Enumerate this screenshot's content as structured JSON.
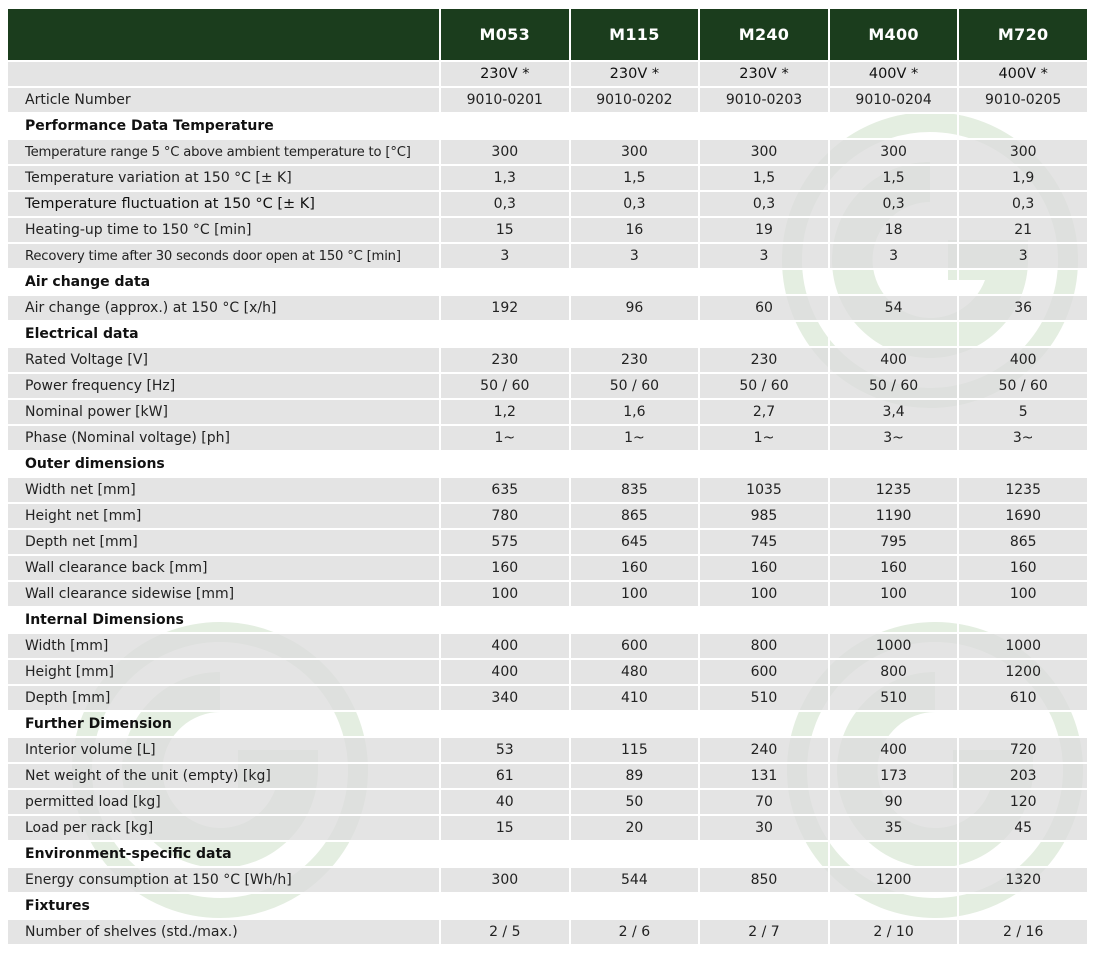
{
  "header": {
    "models": [
      "M053",
      "M115",
      "M240",
      "M400",
      "M720"
    ]
  },
  "voltage_row": [
    "230V *",
    "230V *",
    "230V *",
    "400V *",
    "400V *"
  ],
  "sections": [
    {
      "title": "",
      "rows": [
        {
          "label": "Article Number",
          "values": [
            "9010-0201",
            "9010-0202",
            "9010-0203",
            "9010-0204",
            "9010-0205"
          ]
        }
      ]
    },
    {
      "title": "Performance Data Temperature",
      "rows": [
        {
          "label": "Temperature range 5 °C above ambient temperature to [°C]",
          "values": [
            "300",
            "300",
            "300",
            "300",
            "300"
          ]
        },
        {
          "label": "Temperature variation at 150 °C [± K]",
          "values": [
            "1,3",
            "1,5",
            "1,5",
            "1,5",
            "1,9"
          ]
        },
        {
          "label": "Temperature fluctuation at 150 °C [± K]",
          "values": [
            "0,3",
            "0,3",
            "0,3",
            "0,3",
            "0,3"
          ]
        },
        {
          "label": "Heating-up time to 150 °C [min]",
          "values": [
            "15",
            "16",
            "19",
            "18",
            "21"
          ]
        },
        {
          "label": "Recovery time after 30 seconds door open at 150 °C [min]",
          "values": [
            "3",
            "3",
            "3",
            "3",
            "3"
          ]
        }
      ]
    },
    {
      "title": "Air change data",
      "rows": [
        {
          "label": "Air change (approx.) at 150 °C [x/h]",
          "values": [
            "192",
            "96",
            "60",
            "54",
            "36"
          ]
        }
      ]
    },
    {
      "title": "Electrical data",
      "rows": [
        {
          "label": "Rated Voltage [V]",
          "values": [
            "230",
            "230",
            "230",
            "400",
            "400"
          ]
        },
        {
          "label": "Power frequency [Hz]",
          "values": [
            "50 / 60",
            "50 / 60",
            "50 / 60",
            "50 / 60",
            "50 / 60"
          ]
        },
        {
          "label": "Nominal power [kW]",
          "values": [
            "1,2",
            "1,6",
            "2,7",
            "3,4",
            "5"
          ]
        },
        {
          "label": "Phase (Nominal voltage) [ph]",
          "values": [
            "1~",
            "1~",
            "1~",
            "3~",
            "3~"
          ]
        }
      ]
    },
    {
      "title": "Outer dimensions",
      "rows": [
        {
          "label": "Width net [mm]",
          "values": [
            "635",
            "835",
            "1035",
            "1235",
            "1235"
          ]
        },
        {
          "label": "Height net [mm]",
          "values": [
            "780",
            "865",
            "985",
            "1190",
            "1690"
          ]
        },
        {
          "label": "Depth net [mm]",
          "values": [
            "575",
            "645",
            "745",
            "795",
            "865"
          ]
        },
        {
          "label": "Wall clearance back [mm]",
          "values": [
            "160",
            "160",
            "160",
            "160",
            "160"
          ]
        },
        {
          "label": "Wall clearance sidewise [mm]",
          "values": [
            "100",
            "100",
            "100",
            "100",
            "100"
          ]
        }
      ]
    },
    {
      "title": "Internal Dimensions",
      "rows": [
        {
          "label": "Width [mm]",
          "values": [
            "400",
            "600",
            "800",
            "1000",
            "1000"
          ]
        },
        {
          "label": "Height [mm]",
          "values": [
            "400",
            "480",
            "600",
            "800",
            "1200"
          ]
        },
        {
          "label": "Depth [mm]",
          "values": [
            "340",
            "410",
            "510",
            "510",
            "610"
          ]
        }
      ]
    },
    {
      "title": "Further Dimension",
      "rows": [
        {
          "label": "Interior volume [L]",
          "values": [
            "53",
            "115",
            "240",
            "400",
            "720"
          ]
        },
        {
          "label": "Net weight of the unit (empty) [kg]",
          "values": [
            "61",
            "89",
            "131",
            "173",
            "203"
          ]
        },
        {
          "label": "permitted load [kg]",
          "values": [
            "40",
            "50",
            "70",
            "90",
            "120"
          ]
        },
        {
          "label": "Load per rack [kg]",
          "values": [
            "15",
            "20",
            "30",
            "35",
            "45"
          ]
        }
      ]
    },
    {
      "title": "Environment-specific data",
      "rows": [
        {
          "label": "Energy consumption at 150 °C [Wh/h]",
          "values": [
            "300",
            "544",
            "850",
            "1200",
            "1320"
          ]
        }
      ]
    },
    {
      "title": "Fixtures",
      "rows": [
        {
          "label": "Number of shelves (std./max.)",
          "values": [
            "2 / 5",
            "2 / 6",
            "2 / 7",
            "2 / 10",
            "2 / 16"
          ]
        }
      ]
    }
  ],
  "colors": {
    "header_bg": "#1b3d1d",
    "row_gray": "#dcdcdc",
    "watermark": "#e6efe3"
  },
  "watermark_icon": "g-logo-watermark"
}
